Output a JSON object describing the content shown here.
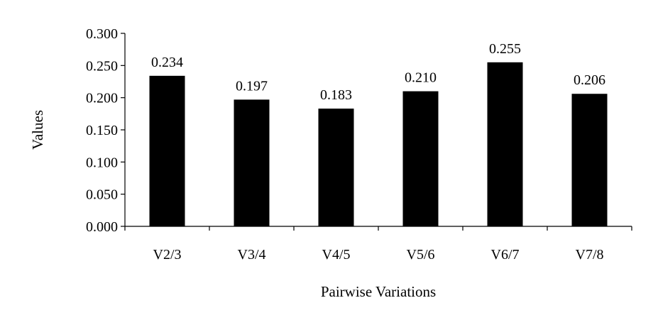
{
  "chart_data": {
    "type": "bar",
    "title": "",
    "xlabel": "Pairwise Variations",
    "ylabel": "Values",
    "categories": [
      "V2/3",
      "V3/4",
      "V4/5",
      "V5/6",
      "V6/7",
      "V7/8"
    ],
    "values": [
      0.234,
      0.197,
      0.183,
      0.21,
      0.255,
      0.206
    ],
    "data_labels": [
      "0.234",
      "0.197",
      "0.183",
      "0.210",
      "0.255",
      "0.206"
    ],
    "yticks": [
      "0.000",
      "0.050",
      "0.100",
      "0.150",
      "0.200",
      "0.250",
      "0.300"
    ],
    "ylim": [
      0,
      0.3
    ],
    "grid": false,
    "legend": "none",
    "bar_color": "#000000"
  }
}
